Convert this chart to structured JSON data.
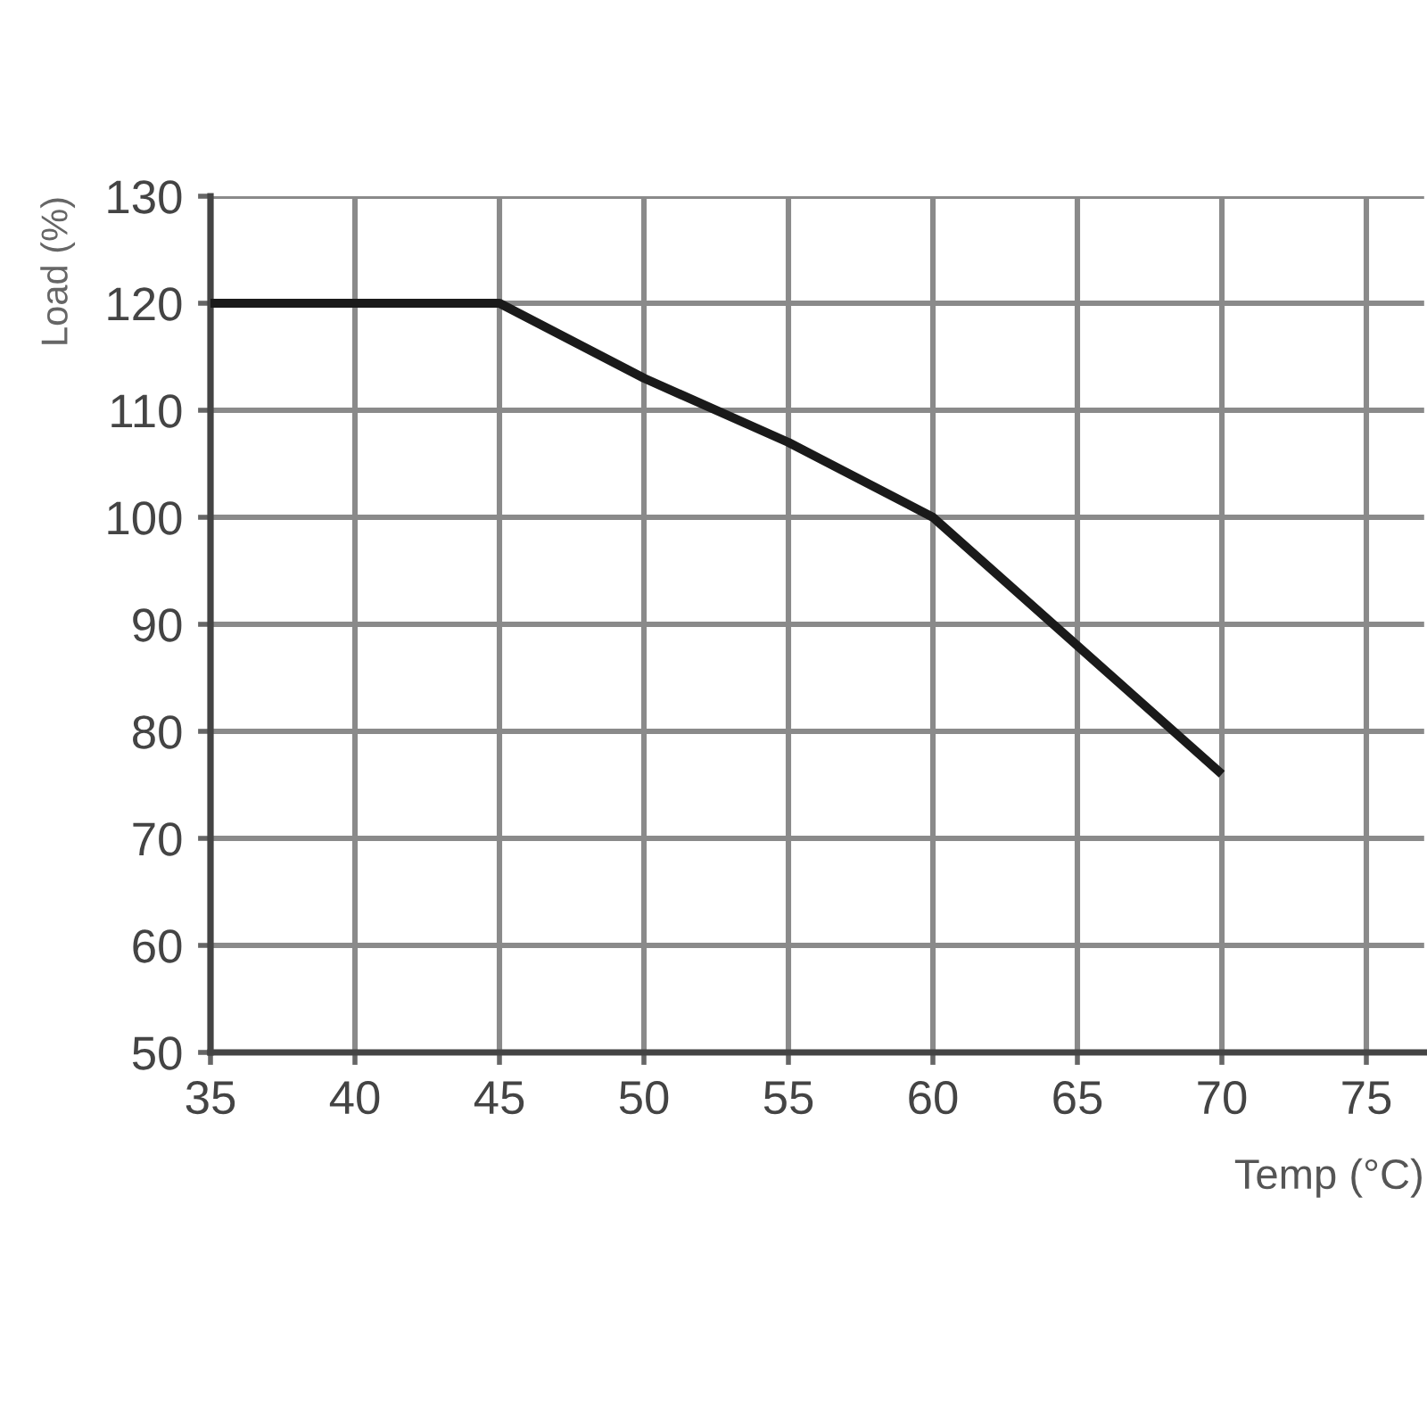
{
  "chart_data": {
    "type": "line",
    "xlabel": "Temp (°C)",
    "ylabel": "Load (%)",
    "x": [
      35,
      45,
      50,
      55,
      60,
      65,
      70
    ],
    "series": [
      {
        "color": "#1a1a1a",
        "values": [
          120,
          120,
          113,
          107,
          100,
          88,
          76
        ]
      }
    ],
    "xlim": [
      35,
      77
    ],
    "ylim": [
      50,
      130
    ],
    "xticks": [
      35,
      40,
      45,
      50,
      55,
      60,
      65,
      70,
      75
    ],
    "yticks": [
      50,
      60,
      70,
      80,
      90,
      100,
      110,
      120,
      130
    ],
    "grid": true,
    "line_style": "solid"
  }
}
